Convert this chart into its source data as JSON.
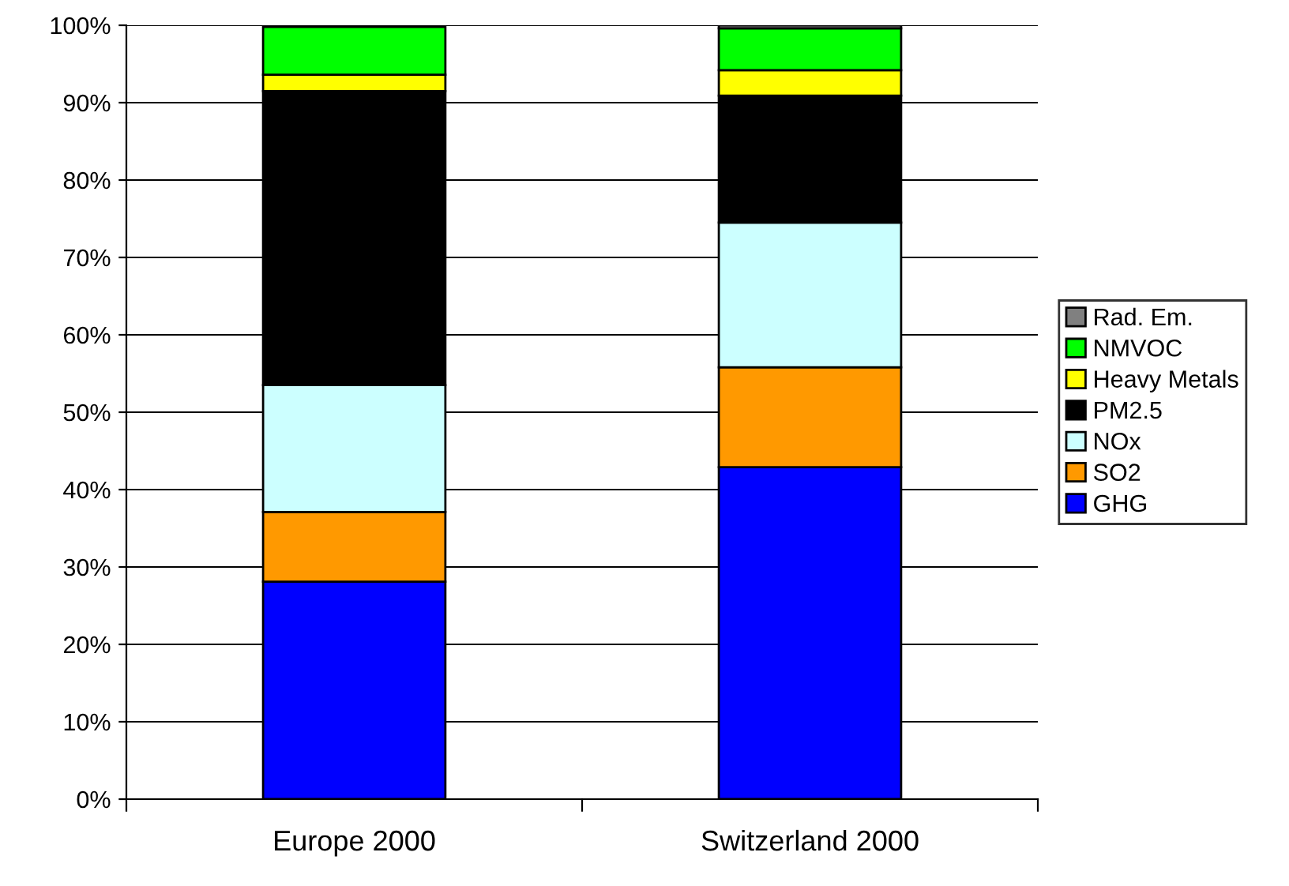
{
  "chart_data": {
    "type": "bar",
    "stacked": true,
    "categories": [
      "Europe 2000",
      "Switzerland 2000"
    ],
    "series": [
      {
        "name": "GHG",
        "color": "#0000ff",
        "values": [
          28.1,
          42.9
        ]
      },
      {
        "name": "SO2",
        "color": "#ff9900",
        "values": [
          9.0,
          12.9
        ]
      },
      {
        "name": "NOx",
        "color": "#ccffff",
        "values": [
          16.4,
          18.7
        ]
      },
      {
        "name": "PM2.5",
        "color": "#000000",
        "values": [
          38.0,
          16.4
        ]
      },
      {
        "name": "Heavy Metals",
        "color": "#ffff00",
        "values": [
          2.1,
          3.3
        ]
      },
      {
        "name": "NMVOC",
        "color": "#00ff00",
        "values": [
          6.2,
          5.4
        ]
      },
      {
        "name": "Rad. Em.",
        "color": "#808080",
        "values": [
          null,
          0.4
        ]
      }
    ],
    "ylim": [
      0,
      100
    ],
    "yticks": [
      {
        "value": 0,
        "label": "0%"
      },
      {
        "value": 10,
        "label": "10%"
      },
      {
        "value": 20,
        "label": "20%"
      },
      {
        "value": 30,
        "label": "30%"
      },
      {
        "value": 40,
        "label": "40%"
      },
      {
        "value": 50,
        "label": "50%"
      },
      {
        "value": 60,
        "label": "60%"
      },
      {
        "value": 70,
        "label": "70%"
      },
      {
        "value": 80,
        "label": "80%"
      },
      {
        "value": 90,
        "label": "90%"
      },
      {
        "value": 100,
        "label": "100%"
      }
    ],
    "grid": "y",
    "legend": "right"
  }
}
